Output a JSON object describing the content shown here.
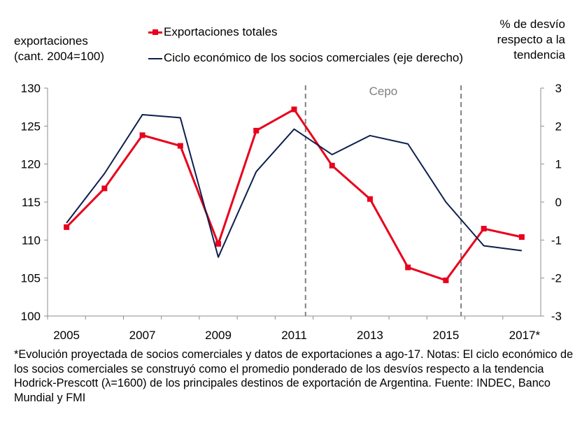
{
  "chart_data": {
    "type": "line",
    "categories": [
      "2005",
      "2006",
      "2007",
      "2008",
      "2009",
      "2010",
      "2011",
      "2012",
      "2013",
      "2014",
      "2015",
      "2016",
      "2017*"
    ],
    "x_tick_labels": [
      "2005",
      "2007",
      "2009",
      "2011",
      "2013",
      "2015",
      "2017*"
    ],
    "y_left_ticks": [
      "100",
      "105",
      "110",
      "115",
      "120",
      "125",
      "130"
    ],
    "y_right_ticks": [
      "-3",
      "-2",
      "-1",
      "0",
      "1",
      "2",
      "3"
    ],
    "ylim_left": [
      100,
      130
    ],
    "ylim_right": [
      -3,
      3
    ],
    "ylabel_left": [
      "exportaciones",
      "(cant. 2004=100)"
    ],
    "ylabel_right": [
      "% de desvío",
      "respecto a la",
      "tendencia"
    ],
    "series": [
      {
        "name": "Exportaciones totales",
        "axis": "left",
        "color": "#e8001c",
        "values": [
          111.7,
          116.8,
          123.8,
          122.4,
          109.5,
          124.4,
          127.2,
          119.8,
          115.4,
          106.4,
          104.7,
          111.5,
          110.4
        ]
      },
      {
        "name": "Ciclo económico de los socios comerciales (eje derecho)",
        "axis": "right",
        "color": "#0d1f4d",
        "values": [
          -0.55,
          0.75,
          2.3,
          2.22,
          -1.45,
          0.8,
          1.92,
          1.25,
          1.75,
          1.53,
          0.0,
          -1.15,
          -1.28
        ]
      }
    ],
    "period_annotation": {
      "label": "Cepo",
      "from_year": 2011.3,
      "to_year": 2015.4
    }
  },
  "footnote": "*Evolución proyectada de socios comerciales y datos de exportaciones a ago-17. Notas: El ciclo económico de los socios comerciales se construyó como el promedio ponderado de los desvíos respecto a la tendencia Hodrick-Prescott (λ=1600)  de los principales destinos de exportación de Argentina. Fuente: INDEC, Banco Mundial y FMI"
}
